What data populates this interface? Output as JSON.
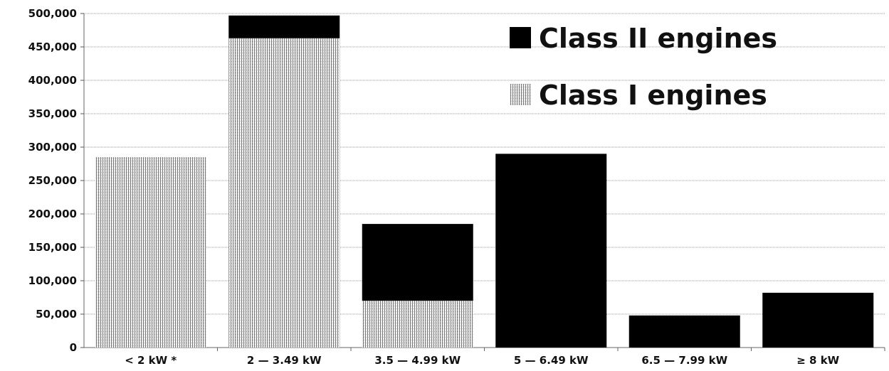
{
  "chart_data": {
    "type": "bar",
    "stacked": true,
    "categories": [
      "< 2 kW *",
      "2 — 3.49 kW",
      "3.5 — 4.99 kW",
      "5 — 6.49 kW",
      "6.5 — 7.99 kW",
      "≥ 8 kW"
    ],
    "series": [
      {
        "name": "Class I engines",
        "values": [
          285000,
          463000,
          70000,
          0,
          0,
          0
        ],
        "color": "#9a9a9a",
        "pattern": "vertical-hatch"
      },
      {
        "name": "Class II engines",
        "values": [
          0,
          34000,
          115000,
          290000,
          48000,
          82000
        ],
        "color": "#000000",
        "pattern": "solid"
      }
    ],
    "ylim": [
      0,
      500000
    ],
    "yticks": [
      0,
      50000,
      100000,
      150000,
      200000,
      250000,
      300000,
      350000,
      400000,
      450000,
      500000
    ],
    "ytick_labels": [
      "0",
      "50,000",
      "100,000",
      "150,000",
      "200,000",
      "250,000",
      "300,000",
      "350,000",
      "400,000",
      "450,000",
      "500,000"
    ],
    "grid": true,
    "legend": {
      "position": "top-right",
      "entries": [
        "Class II engines",
        "Class I engines"
      ]
    },
    "title": "",
    "xlabel": "",
    "ylabel": ""
  }
}
